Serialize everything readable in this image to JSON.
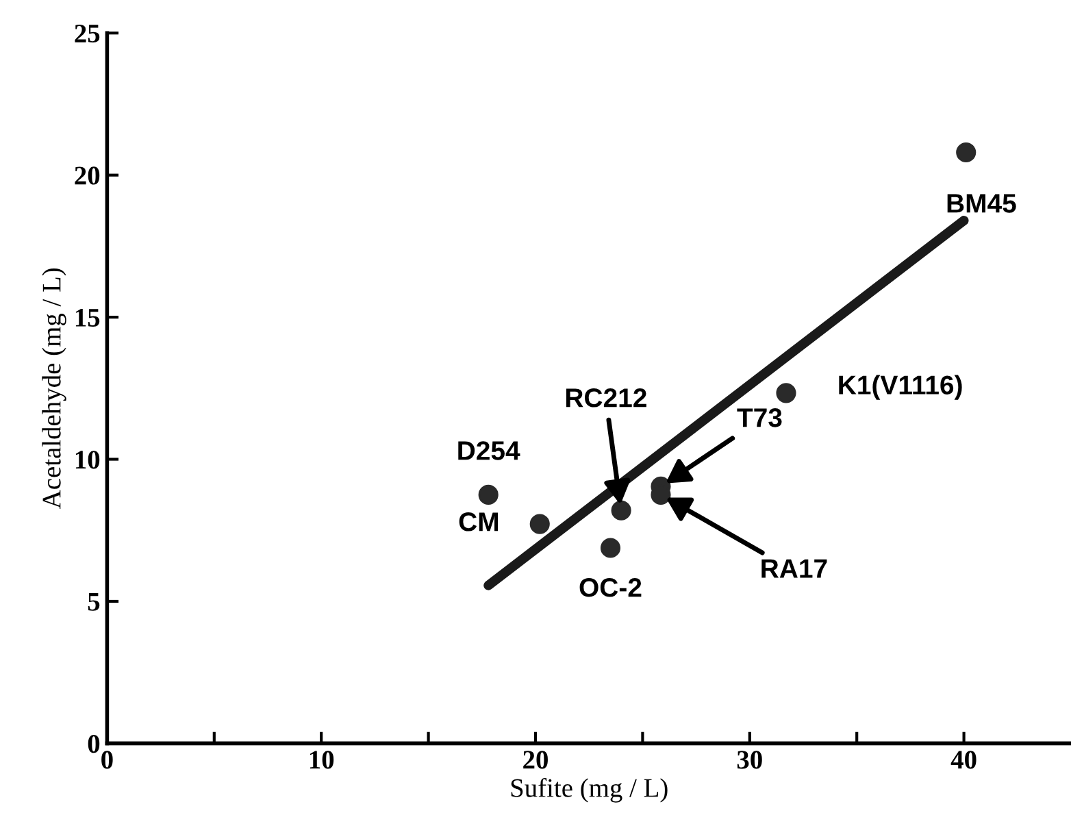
{
  "chart_data": {
    "type": "scatter",
    "xlabel": "Sufite (mg / L)",
    "ylabel": "Acetaldehyde (mg / L)",
    "xlim": [
      0,
      45
    ],
    "ylim": [
      0,
      25
    ],
    "xticks": [
      0,
      {
        "value": 5,
        "label": null
      },
      10,
      {
        "value": 15,
        "label": null
      },
      20,
      {
        "value": 25,
        "label": null
      },
      30,
      {
        "value": 35,
        "label": null
      },
      40
    ],
    "yticks": [
      0,
      5,
      10,
      15,
      20,
      25
    ],
    "grid": false,
    "legend": false,
    "series": [
      {
        "marker": "circle",
        "color": "#2a2a2a",
        "x": [
          17.8,
          20.2,
          23.5,
          24.0,
          25.85,
          25.85,
          31.7,
          40.1
        ],
        "values": [
          8.75,
          7.72,
          6.88,
          8.2,
          9.04,
          8.75,
          12.33,
          20.8
        ]
      },
      {
        "type": "line",
        "color": "#1a1a1a",
        "x": [
          17.8,
          40.0
        ],
        "values": [
          5.56,
          18.4
        ],
        "line_style": "solid",
        "marker": "none"
      }
    ],
    "annotations": [
      {
        "text": "D254",
        "x": 17.8,
        "y": 8.75
      },
      {
        "text": "CM",
        "x": 20.2,
        "y": 7.72
      },
      {
        "text": "OC-2",
        "x": 23.5,
        "y": 6.88
      },
      {
        "text": "RC212",
        "x": 24.0,
        "y": 8.2
      },
      {
        "text": "T73",
        "x": 25.85,
        "y": 9.04
      },
      {
        "text": "RA17",
        "x": 25.85,
        "y": 8.75
      },
      {
        "text": "K1(V1116)",
        "x": 31.7,
        "y": 12.33
      },
      {
        "text": "BM45",
        "x": 40.1,
        "y": 20.8
      }
    ]
  }
}
